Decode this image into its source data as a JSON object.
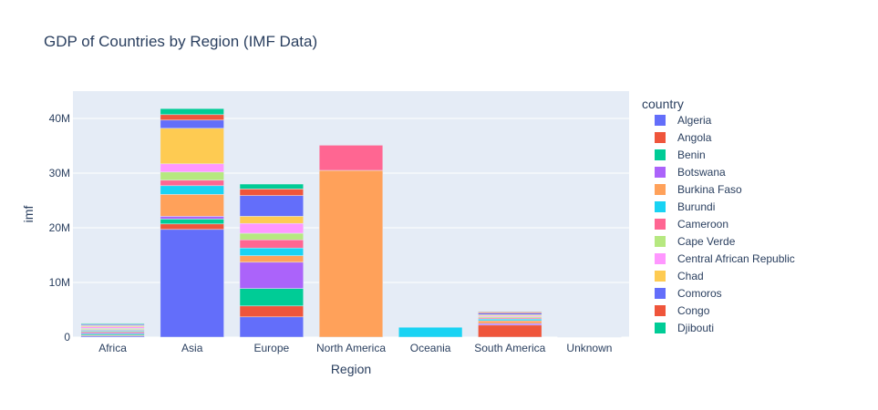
{
  "chart_data": {
    "type": "bar",
    "barmode": "stack",
    "title": "GDP of Countries by Region (IMF Data)",
    "xlabel": "Region",
    "ylabel": "imf",
    "categories": [
      "Africa",
      "Asia",
      "Europe",
      "North America",
      "Oceania",
      "South America",
      "Unknown"
    ],
    "ylim": [
      0,
      45000000
    ],
    "yticks": [
      0,
      10000000,
      20000000,
      30000000,
      40000000
    ],
    "ytick_labels": [
      "0",
      "10M",
      "20M",
      "30M",
      "40M"
    ],
    "grid": true,
    "plot_background": "#e5ecf6",
    "legend": {
      "title": "country",
      "position": "right"
    },
    "series": [
      {
        "name": "Algeria",
        "color": "#636efa",
        "values": [
          200000,
          19700000,
          3700000,
          0,
          0,
          0,
          80000
        ]
      },
      {
        "name": "Angola",
        "color": "#ef553b",
        "values": [
          150000,
          1000000,
          2000000,
          0,
          0,
          2200000,
          0
        ]
      },
      {
        "name": "Benin",
        "color": "#00cc96",
        "values": [
          250000,
          900000,
          3200000,
          0,
          0,
          0,
          0
        ]
      },
      {
        "name": "Botswana",
        "color": "#ab63fa",
        "values": [
          250000,
          500000,
          4800000,
          0,
          0,
          300000,
          0
        ]
      },
      {
        "name": "Burkina Faso",
        "color": "#ffa15a",
        "values": [
          200000,
          4000000,
          1200000,
          30500000,
          0,
          500000,
          0
        ]
      },
      {
        "name": "Burundi",
        "color": "#19d3f3",
        "values": [
          200000,
          1600000,
          1400000,
          0,
          1800000,
          300000,
          0
        ]
      },
      {
        "name": "Cameroon",
        "color": "#ff6692",
        "values": [
          150000,
          1000000,
          1500000,
          4600000,
          0,
          200000,
          0
        ]
      },
      {
        "name": "Cape Verde",
        "color": "#b6e880",
        "values": [
          200000,
          1500000,
          1200000,
          0,
          0,
          200000,
          0
        ]
      },
      {
        "name": "Central African Republic",
        "color": "#ff97ff",
        "values": [
          300000,
          1500000,
          1800000,
          0,
          0,
          200000,
          0
        ]
      },
      {
        "name": "Chad",
        "color": "#fecb52",
        "values": [
          200000,
          6500000,
          1300000,
          0,
          0,
          200000,
          0
        ]
      },
      {
        "name": "Comoros",
        "color": "#636efa",
        "values": [
          200000,
          1500000,
          3800000,
          0,
          0,
          300000,
          0
        ]
      },
      {
        "name": "Congo",
        "color": "#ef553b",
        "values": [
          100000,
          1000000,
          1200000,
          0,
          0,
          200000,
          0
        ]
      },
      {
        "name": "Djibouti",
        "color": "#00cc96",
        "values": [
          150000,
          1100000,
          900000,
          0,
          0,
          100000,
          0
        ]
      }
    ]
  }
}
